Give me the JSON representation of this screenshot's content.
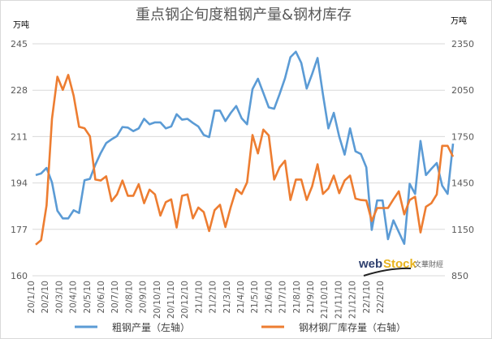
{
  "chart_data": {
    "type": "line",
    "title": "重点钢企旬度粗钢产量&钢材库存",
    "y_left_unit": "万吨",
    "y_right_unit": "万吨",
    "y_left": {
      "ticks": [
        "245",
        "228",
        "211",
        "194",
        "177",
        "160"
      ],
      "range": [
        160,
        245
      ]
    },
    "y_right": {
      "ticks": [
        "2350",
        "2050",
        "1750",
        "1450",
        "1150",
        "850"
      ],
      "range": [
        850,
        2350
      ]
    },
    "grid": true,
    "legend_position": "bottom",
    "x_tick_labels": [
      "20/1/10",
      "20/2/10",
      "20/3/10",
      "20/4/10",
      "20/5/10",
      "20/6/10",
      "20/7/10",
      "20/8/10",
      "20/9/10",
      "20/10/10",
      "20/11/10",
      "20/12/10",
      "21/1/10",
      "21/2/10",
      "21/3/10",
      "21/4/10",
      "21/5/10",
      "21/6/10",
      "21/7/10",
      "21/8/10",
      "21/9/10",
      "21/10/10",
      "21/11/10",
      "21/12/10",
      "22/1/10",
      "22/2/10"
    ],
    "series": [
      {
        "name": "粗钢产量（左轴）",
        "axis": "left",
        "color": "#5b9bd5",
        "values": [
          196.9,
          197.5,
          199.5,
          194.2,
          183.8,
          181,
          181,
          184,
          183,
          195,
          195.5,
          200.7,
          205,
          208.6,
          210,
          211.2,
          214.5,
          214.3,
          213,
          214,
          217.5,
          215.5,
          216.2,
          216.2,
          214,
          214.7,
          219.2,
          217.2,
          217.5,
          216,
          214.7,
          211.6,
          210.8,
          220.5,
          220.5,
          216.7,
          219.7,
          222.2,
          217.7,
          215.5,
          228.4,
          232.2,
          227,
          221.7,
          221.2,
          226.6,
          232.4,
          240.1,
          242.1,
          238,
          228.6,
          233.9,
          239.8,
          226.4,
          214,
          219.7,
          211,
          204.4,
          214,
          205.6,
          204.6,
          199.7,
          176.8,
          187.6,
          187.6,
          173.4,
          180.3,
          176,
          171.7,
          193.7,
          190,
          209.4,
          196.9,
          199.2,
          201.3,
          193,
          190,
          208.4
        ]
      },
      {
        "name": "钢材钢厂库存量（右轴）",
        "axis": "right",
        "color": "#ed7d31",
        "values": [
          1051,
          1081,
          1305,
          1865,
          2137,
          2052,
          2149,
          2014,
          1813,
          1804,
          1752,
          1472,
          1466,
          1493,
          1332,
          1376,
          1466,
          1367,
          1367,
          1442,
          1319,
          1407,
          1376,
          1239,
          1326,
          1344,
          1162,
          1367,
          1376,
          1221,
          1291,
          1262,
          1139,
          1274,
          1309,
          1165,
          1296,
          1410,
          1379,
          1454,
          1760,
          1641,
          1795,
          1757,
          1472,
          1551,
          1594,
          1340,
          1472,
          1472,
          1340,
          1428,
          1571,
          1379,
          1414,
          1498,
          1384,
          1466,
          1498,
          1349,
          1340,
          1337,
          1204,
          1288,
          1288,
          1288,
          1344,
          1396,
          1247,
          1340,
          1361,
          1130,
          1296,
          1319,
          1376,
          1690,
          1690,
          1620
        ]
      }
    ],
    "watermark": "webstock 文華財經"
  }
}
